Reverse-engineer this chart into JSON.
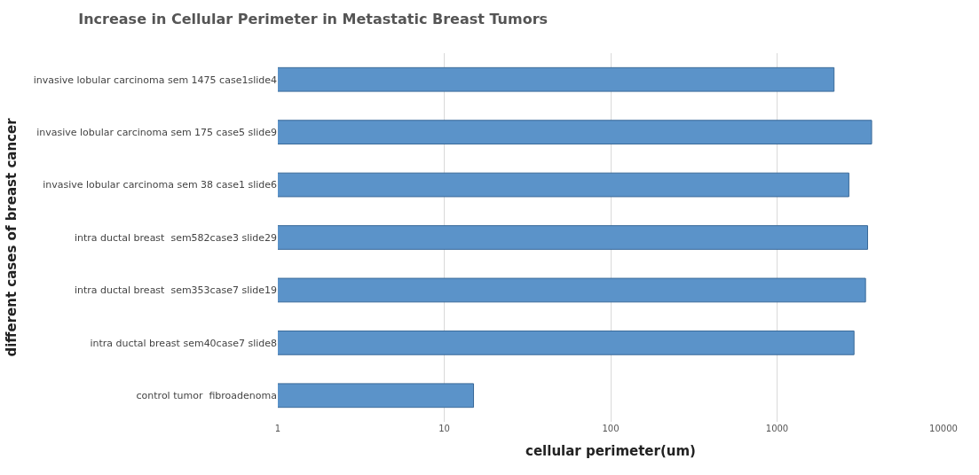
{
  "chart_data": {
    "type": "bar",
    "orientation": "horizontal",
    "title": "Increase in Cellular Perimeter in Metastatic Breast Tumors",
    "xlabel": "cellular perimeter(um)",
    "ylabel": "different cases of breast cancer",
    "categories": [
      "invasive lobular carcinoma sem 1475 case1slide4",
      "invasive lobular carcinoma sem 175 case5 slide9",
      "invasive lobular carcinoma sem 38 case1 slide6",
      "intra ductal breast  sem582case3 slide29",
      "intra ductal breast  sem353case7 slide19",
      "intra ductal breast sem40case7 slide8",
      "control tumor  fibroadenoma"
    ],
    "values": [
      2200,
      3700,
      2700,
      3500,
      3400,
      2900,
      15
    ],
    "color": "#5b93c9",
    "log": "x",
    "xlim": [
      1,
      10000
    ],
    "xticks": [
      1,
      10,
      100,
      1000,
      10000
    ],
    "grid": "x"
  }
}
